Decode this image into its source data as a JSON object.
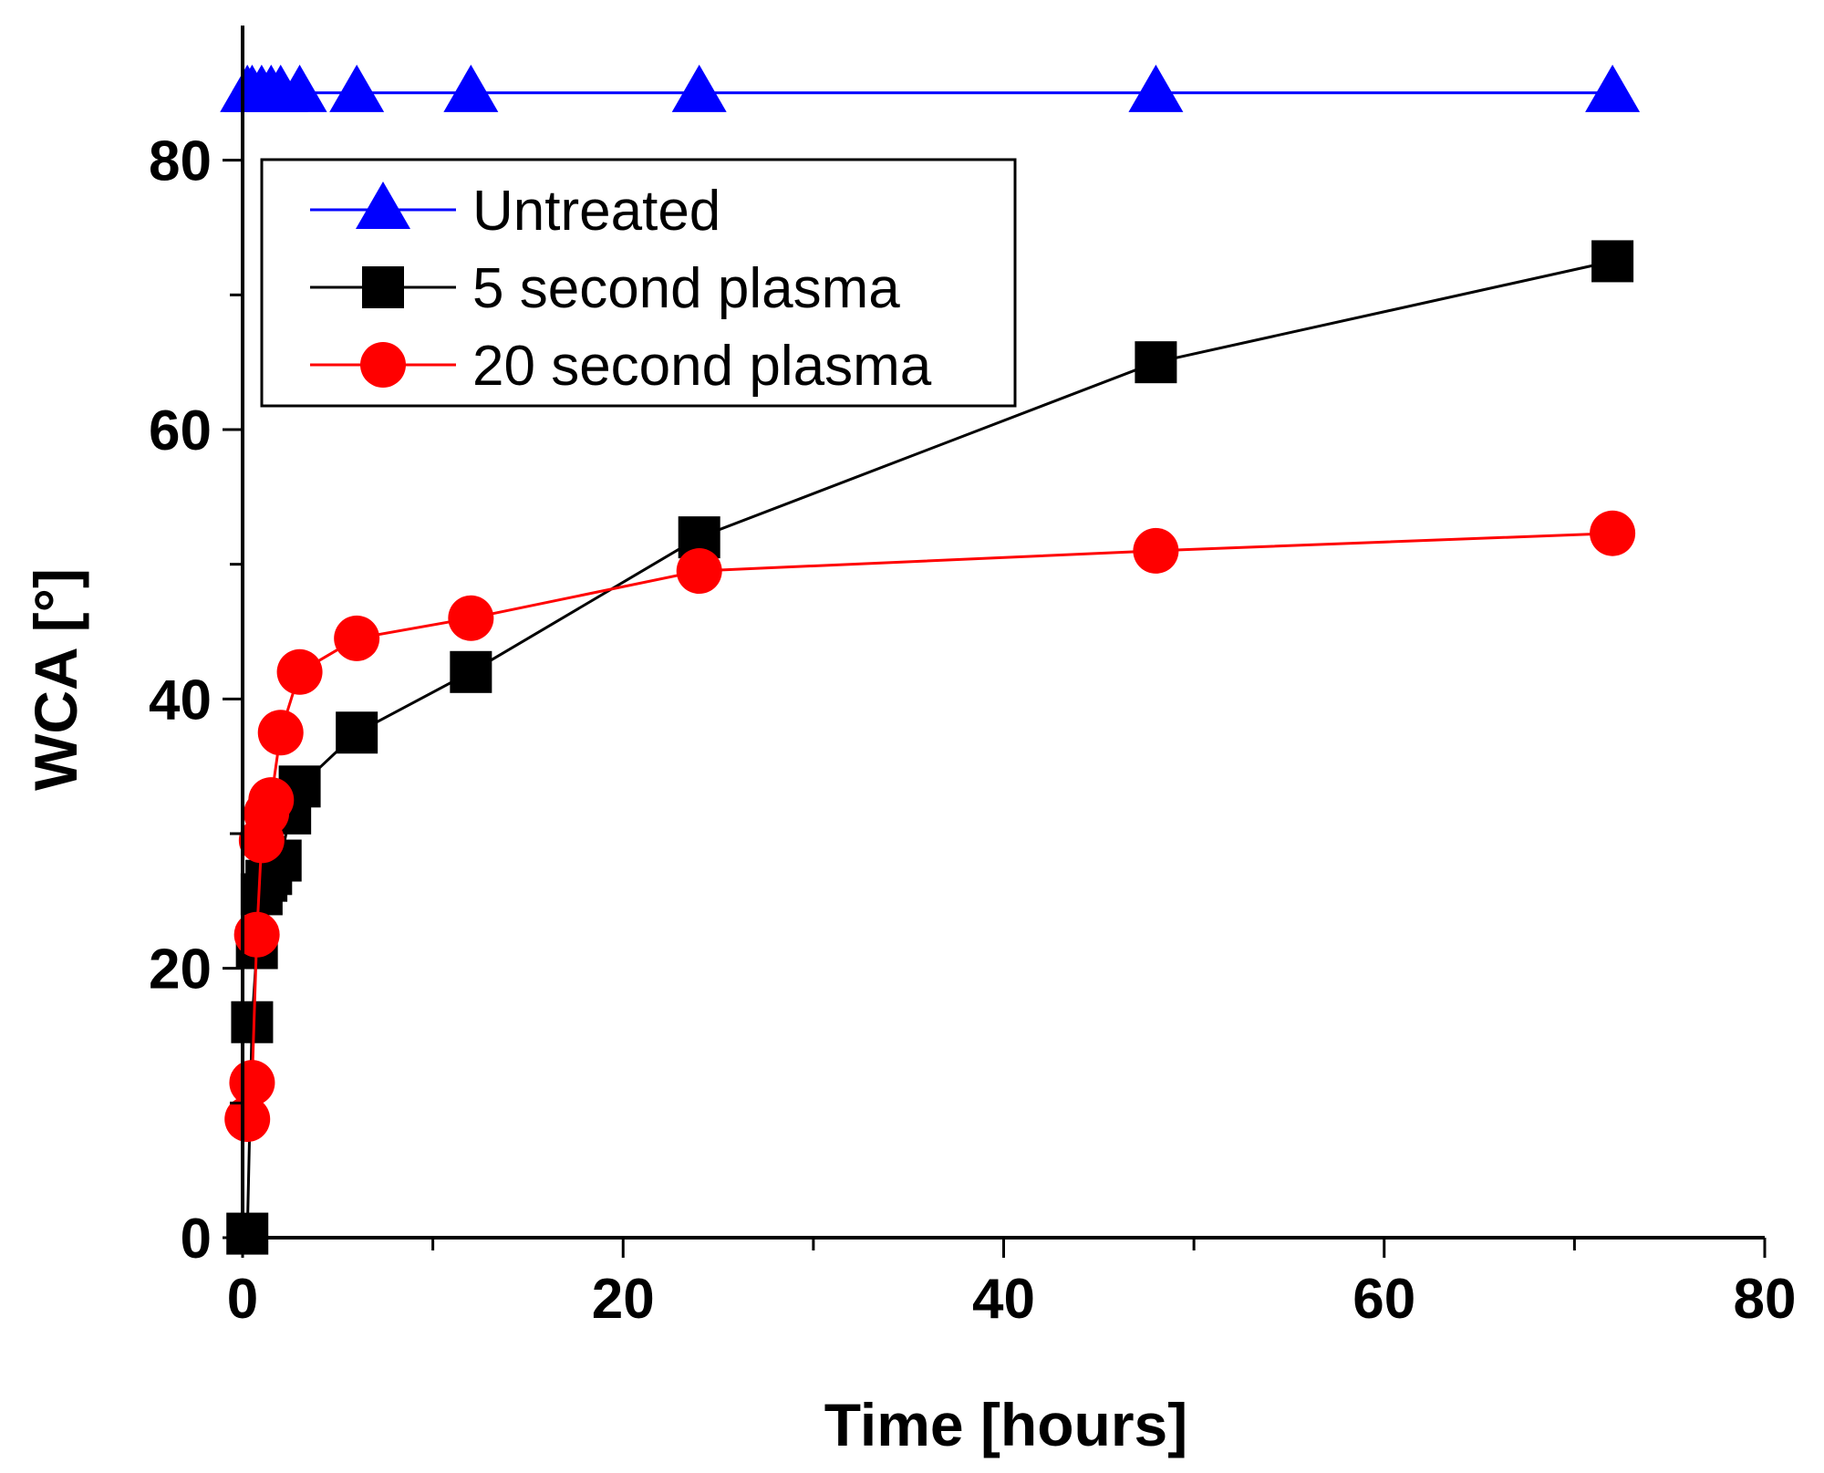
{
  "chart_data": {
    "type": "line",
    "title": "",
    "xlabel": "Time [hours]",
    "ylabel": "WCA [°]",
    "xlim": [
      0,
      80
    ],
    "ylim": [
      0,
      90
    ],
    "xticks": [
      0,
      20,
      40,
      60,
      80
    ],
    "yticks": [
      0,
      20,
      40,
      60,
      80
    ],
    "xtick_labels": [
      "0",
      "20",
      "40",
      "60",
      "80"
    ],
    "ytick_labels": [
      "0",
      "20",
      "40",
      "60",
      "80"
    ],
    "x_minor_step": 10,
    "y_minor_step": 10,
    "grid": false,
    "legend_position": "upper-left",
    "series": [
      {
        "name": "Untreated",
        "color": "#0000ff",
        "marker": "triangle",
        "x": [
          0.25,
          0.5,
          1,
          1.5,
          2,
          3,
          6,
          12,
          24,
          48,
          72
        ],
        "y": [
          85,
          85,
          85,
          85,
          85,
          85,
          85,
          85,
          85,
          85,
          85
        ]
      },
      {
        "name": "5 second plasma",
        "color": "#000000",
        "marker": "square",
        "x": [
          0.25,
          0.5,
          0.75,
          1,
          1.25,
          1.5,
          2,
          2.5,
          3,
          6,
          12,
          24,
          48,
          72
        ],
        "y": [
          0.3,
          16,
          21.5,
          25.5,
          26.5,
          27,
          28,
          31.5,
          33.5,
          37.5,
          42,
          52,
          65,
          72.5
        ]
      },
      {
        "name": "20 second plasma",
        "color": "#ff0000",
        "marker": "circle",
        "x": [
          0.25,
          0.5,
          0.75,
          1,
          1.25,
          1.5,
          2,
          3,
          6,
          12,
          24,
          48,
          72
        ],
        "y": [
          8.8,
          11.5,
          22.5,
          29.5,
          31.5,
          32.5,
          37.5,
          42,
          44.5,
          46,
          49.5,
          51,
          52.3
        ]
      }
    ]
  }
}
